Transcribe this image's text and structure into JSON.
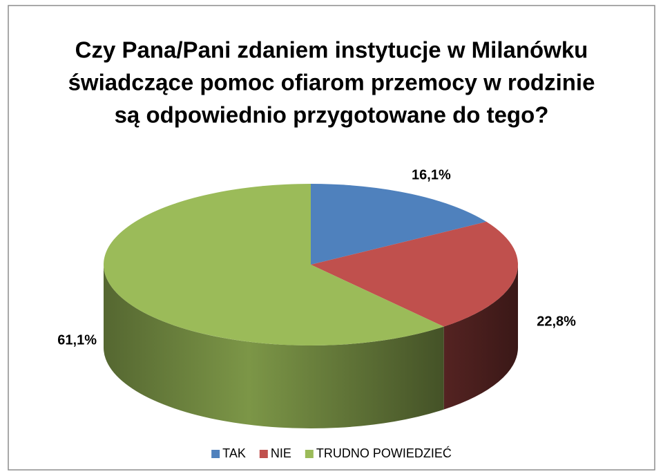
{
  "chart_data": {
    "type": "pie3d",
    "title": [
      "Czy Pana/Pani  zdaniem instytucje w Milanówku",
      "świadczące pomoc ofiarom przemocy w rodzinie",
      "są odpowiednio przygotowane do tego?"
    ],
    "categories": [
      "TAK",
      "NIE",
      "TRUDNO POWIEDZIEĆ"
    ],
    "values": [
      16.1,
      22.8,
      61.1
    ],
    "value_labels": [
      "16,1%",
      "22,8%",
      "61,1%"
    ],
    "colors": [
      "#4f81bd",
      "#c0504d",
      "#9bbb59"
    ],
    "legend": "bottom"
  }
}
